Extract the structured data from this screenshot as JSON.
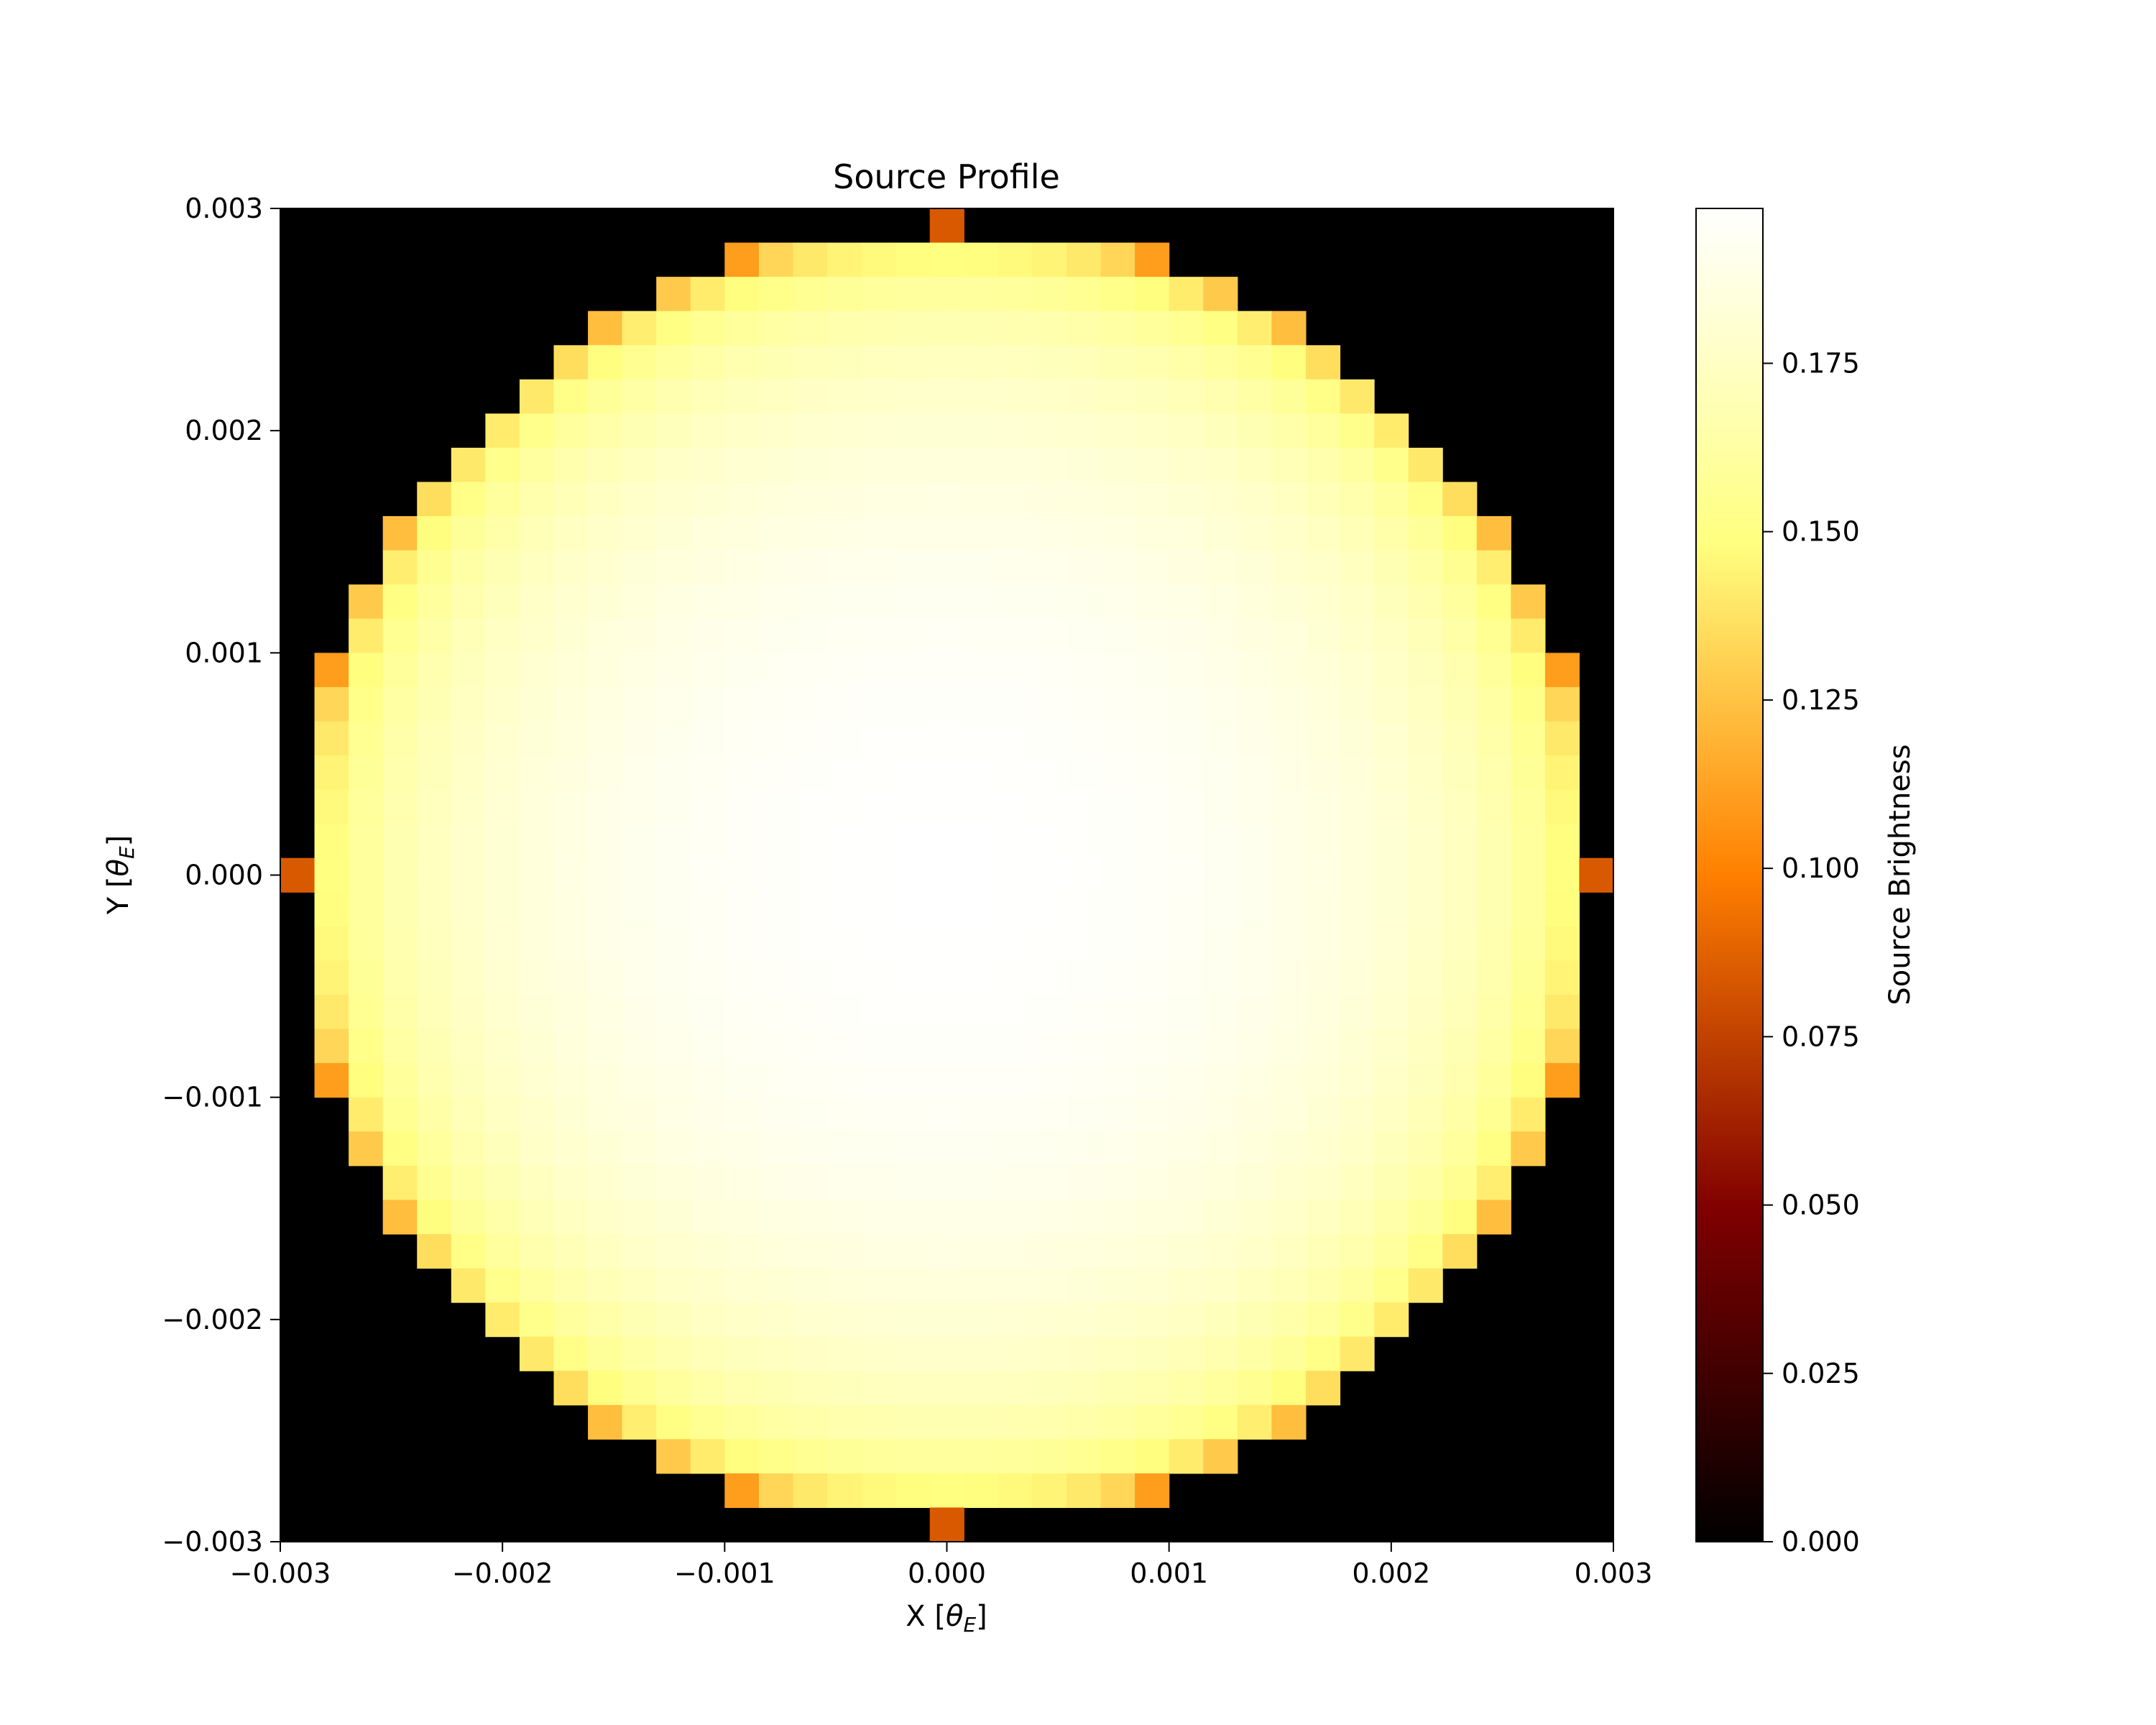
{
  "chart_data": {
    "type": "heatmap",
    "title": "Source Profile",
    "xlabel": {
      "main": "X [",
      "symbol": "θ",
      "sub": "E",
      "close": "]"
    },
    "ylabel": {
      "main": "Y [",
      "symbol": "θ",
      "sub": "E",
      "close": "]"
    },
    "xlim": [
      -0.003,
      0.003
    ],
    "ylim": [
      -0.003,
      0.003
    ],
    "x_ticks": [
      -0.003,
      -0.002,
      -0.001,
      0.0,
      0.001,
      0.002,
      0.003
    ],
    "x_tick_labels": [
      "−0.003",
      "−0.002",
      "−0.001",
      "0.000",
      "0.001",
      "0.002",
      "0.003"
    ],
    "y_ticks": [
      -0.003,
      -0.002,
      -0.001,
      0.0,
      0.001,
      0.002,
      0.003
    ],
    "y_tick_labels": [
      "−0.003",
      "−0.002",
      "−0.001",
      "0.000",
      "0.001",
      "0.002",
      "0.003"
    ],
    "grid": false,
    "colormap": "afmhot",
    "colormap_stops": [
      {
        "value": 0.0,
        "color": "#000000"
      },
      {
        "value": 0.25,
        "color": "#800000"
      },
      {
        "value": 0.5,
        "color": "#ff8000"
      },
      {
        "value": 0.75,
        "color": "#ffff80"
      },
      {
        "value": 1.0,
        "color": "#ffffff"
      }
    ],
    "source_model": {
      "description_kind": "limb-darkened disk sampled on a square grid",
      "grid_size": 39,
      "radius": 0.003,
      "center_value": 0.198,
      "edge_value": 0.084,
      "outside_value": 0.0
    },
    "colorbar": {
      "label": "Source Brightness",
      "vmin": 0.0,
      "vmax": 0.198,
      "ticks": [
        0.0,
        0.025,
        0.05,
        0.075,
        0.1,
        0.125,
        0.15,
        0.175
      ],
      "tick_labels": [
        "0.000",
        "0.025",
        "0.050",
        "0.075",
        "0.100",
        "0.125",
        "0.150",
        "0.175"
      ]
    }
  }
}
